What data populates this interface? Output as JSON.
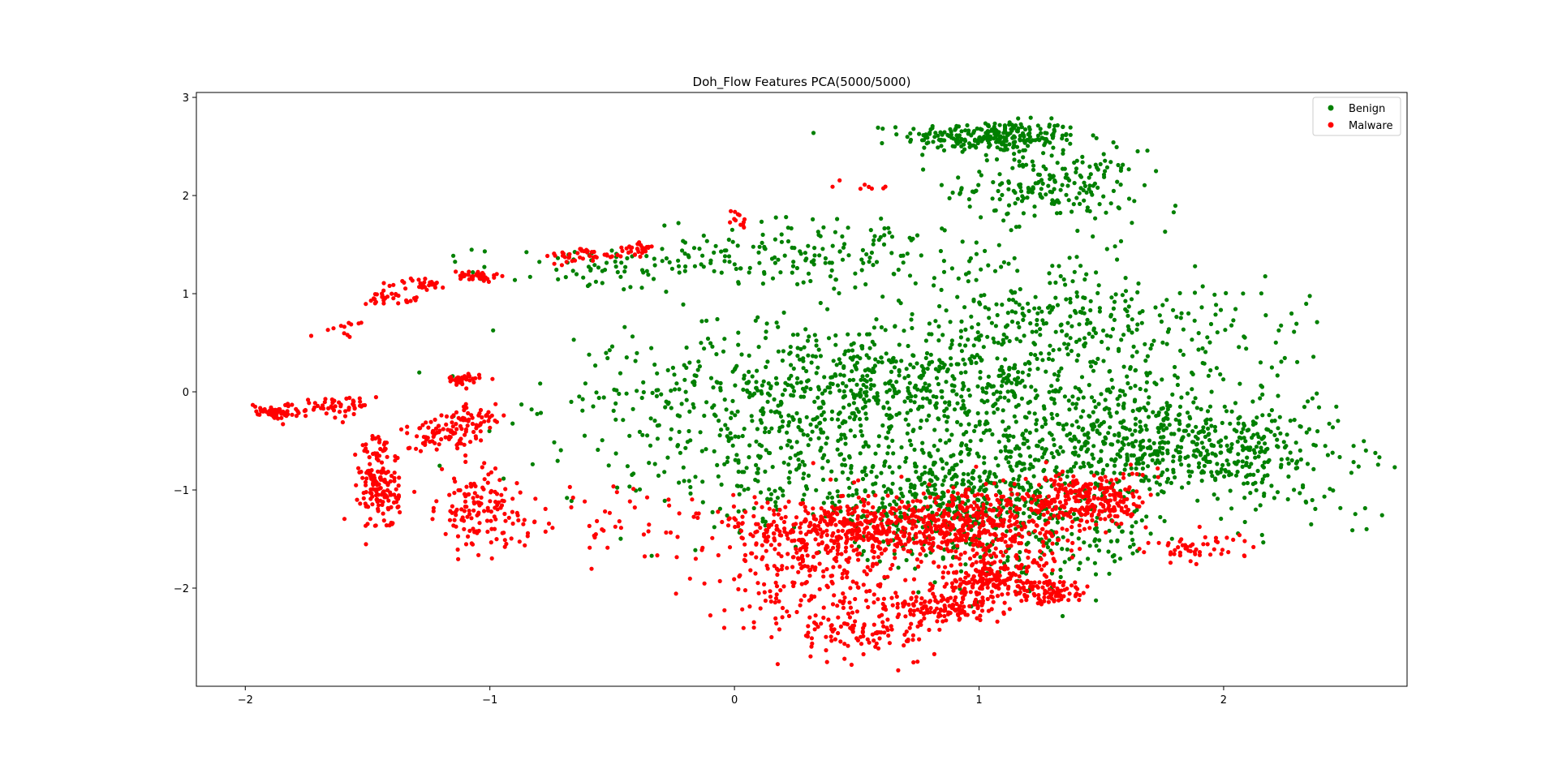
{
  "chart_data": {
    "type": "scatter",
    "title": "Doh_Flow Features PCA(5000/5000)",
    "xlabel": "",
    "ylabel": "",
    "xlim": [
      -2.2,
      2.75
    ],
    "ylim": [
      -3.0,
      3.05
    ],
    "x_ticks": [
      -2,
      -1,
      0,
      1,
      2
    ],
    "x_tick_labels": [
      "−2",
      "−1",
      "0",
      "1",
      "2"
    ],
    "y_ticks": [
      -2,
      -1,
      0,
      1,
      2,
      3
    ],
    "y_tick_labels": [
      "−2",
      "−1",
      "0",
      "1",
      "2",
      "3"
    ],
    "grid": false,
    "legend_position": "top-right",
    "series": [
      {
        "name": "Benign",
        "color": "#008000",
        "clusters": [
          {
            "cx": 1.05,
            "cy": 2.6,
            "sx": 0.18,
            "sy": 0.08,
            "n": 260
          },
          {
            "cx": 1.3,
            "cy": 2.1,
            "sx": 0.18,
            "sy": 0.18,
            "n": 200
          },
          {
            "cx": 0.35,
            "cy": 1.4,
            "sx": 0.35,
            "sy": 0.18,
            "n": 180
          },
          {
            "cx": -0.55,
            "cy": 1.25,
            "sx": 0.25,
            "sy": 0.12,
            "n": 70
          },
          {
            "cx": 1.3,
            "cy": 0.8,
            "sx": 0.3,
            "sy": 0.3,
            "n": 200
          },
          {
            "cx": 0.3,
            "cy": 0.0,
            "sx": 0.35,
            "sy": 0.35,
            "n": 450
          },
          {
            "cx": 0.95,
            "cy": 0.1,
            "sx": 0.3,
            "sy": 0.35,
            "n": 380
          },
          {
            "cx": 1.6,
            "cy": -0.5,
            "sx": 0.3,
            "sy": 0.3,
            "n": 400
          },
          {
            "cx": 2.05,
            "cy": -0.6,
            "sx": 0.25,
            "sy": 0.2,
            "n": 220
          },
          {
            "cx": 0.9,
            "cy": -1.1,
            "sx": 0.35,
            "sy": 0.3,
            "n": 550
          },
          {
            "cx": 1.25,
            "cy": -1.5,
            "sx": 0.25,
            "sy": 0.3,
            "n": 150
          },
          {
            "cx": -0.4,
            "cy": -0.3,
            "sx": 0.3,
            "sy": 0.4,
            "n": 80
          },
          {
            "cx": 0.15,
            "cy": -0.8,
            "sx": 0.25,
            "sy": 0.3,
            "n": 120
          },
          {
            "cx": 2.3,
            "cy": -1.2,
            "sx": 0.15,
            "sy": 0.15,
            "n": 25
          },
          {
            "cx": 1.85,
            "cy": 0.3,
            "sx": 0.3,
            "sy": 0.5,
            "n": 150
          }
        ]
      },
      {
        "name": "Malware",
        "color": "#ff0000",
        "clusters": [
          {
            "cx": -1.88,
            "cy": -0.2,
            "sx": 0.05,
            "sy": 0.04,
            "n": 60
          },
          {
            "cx": -1.65,
            "cy": -0.15,
            "sx": 0.05,
            "sy": 0.05,
            "n": 30
          },
          {
            "cx": -1.55,
            "cy": -0.15,
            "sx": 0.04,
            "sy": 0.06,
            "n": 20
          },
          {
            "cx": -1.45,
            "cy": -1.0,
            "sx": 0.04,
            "sy": 0.2,
            "n": 140
          },
          {
            "cx": -1.45,
            "cy": -0.6,
            "sx": 0.04,
            "sy": 0.08,
            "n": 25
          },
          {
            "cx": -1.2,
            "cy": -0.45,
            "sx": 0.08,
            "sy": 0.08,
            "n": 60
          },
          {
            "cx": -1.1,
            "cy": -0.3,
            "sx": 0.05,
            "sy": 0.08,
            "n": 40
          },
          {
            "cx": -1.05,
            "cy": -1.2,
            "sx": 0.08,
            "sy": 0.2,
            "n": 120
          },
          {
            "cx": -1.12,
            "cy": 0.12,
            "sx": 0.04,
            "sy": 0.03,
            "n": 40
          },
          {
            "cx": -1.0,
            "cy": -0.25,
            "sx": 0.03,
            "sy": 0.06,
            "n": 15
          },
          {
            "cx": -1.4,
            "cy": 0.95,
            "sx": 0.06,
            "sy": 0.03,
            "n": 30
          },
          {
            "cx": -1.28,
            "cy": 1.1,
            "sx": 0.05,
            "sy": 0.03,
            "n": 30
          },
          {
            "cx": -1.05,
            "cy": 1.18,
            "sx": 0.05,
            "sy": 0.03,
            "n": 40
          },
          {
            "cx": -0.6,
            "cy": 1.38,
            "sx": 0.08,
            "sy": 0.04,
            "n": 40
          },
          {
            "cx": -0.4,
            "cy": 1.45,
            "sx": 0.04,
            "sy": 0.04,
            "n": 25
          },
          {
            "cx": -1.6,
            "cy": 0.65,
            "sx": 0.05,
            "sy": 0.04,
            "n": 12
          },
          {
            "cx": -0.7,
            "cy": -1.3,
            "sx": 0.3,
            "sy": 0.2,
            "n": 60
          },
          {
            "cx": 0.35,
            "cy": -1.8,
            "sx": 0.2,
            "sy": 0.35,
            "n": 280
          },
          {
            "cx": 0.5,
            "cy": -2.45,
            "sx": 0.12,
            "sy": 0.1,
            "n": 80
          },
          {
            "cx": 0.85,
            "cy": -2.2,
            "sx": 0.12,
            "sy": 0.08,
            "n": 150
          },
          {
            "cx": 0.45,
            "cy": -1.4,
            "sx": 0.25,
            "sy": 0.15,
            "n": 350
          },
          {
            "cx": 0.95,
            "cy": -1.35,
            "sx": 0.2,
            "sy": 0.2,
            "n": 450
          },
          {
            "cx": 1.05,
            "cy": -1.9,
            "sx": 0.12,
            "sy": 0.1,
            "n": 180
          },
          {
            "cx": 1.3,
            "cy": -2.05,
            "sx": 0.07,
            "sy": 0.06,
            "n": 80
          },
          {
            "cx": 1.45,
            "cy": -1.1,
            "sx": 0.12,
            "sy": 0.15,
            "n": 260
          },
          {
            "cx": 1.9,
            "cy": -1.6,
            "sx": 0.12,
            "sy": 0.08,
            "n": 50
          },
          {
            "cx": 0.0,
            "cy": 1.75,
            "sx": 0.03,
            "sy": 0.05,
            "n": 12
          },
          {
            "cx": 0.55,
            "cy": 2.1,
            "sx": 0.05,
            "sy": 0.03,
            "n": 8
          }
        ]
      }
    ]
  }
}
